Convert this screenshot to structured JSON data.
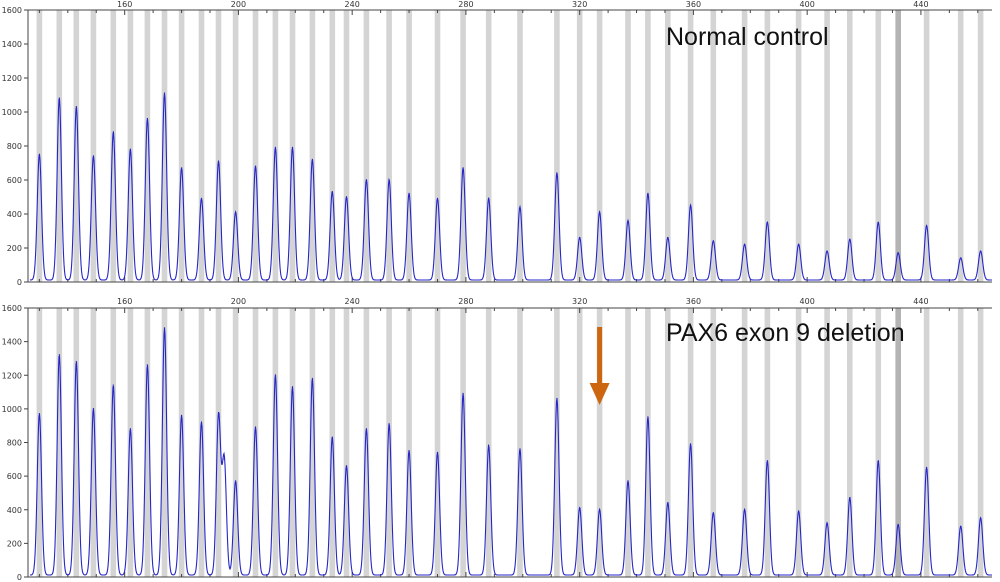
{
  "figure": {
    "colors": {
      "trace": "#2626c8",
      "bin": "#d4d4d4",
      "bin_dark": "#b4b4b4",
      "axis": "#444444",
      "arrow": "#cc6611"
    }
  },
  "chart_data": [
    {
      "type": "line",
      "title": "Normal control",
      "xlabel": "",
      "ylabel": "",
      "x_ticks": [
        "160",
        "200",
        "240",
        "280",
        "320",
        "360",
        "400",
        "440"
      ],
      "y_ticks": [
        "0",
        "200",
        "400",
        "600",
        "800",
        "1000",
        "1200",
        "1400",
        "1600"
      ],
      "xlim": [
        126,
        465
      ],
      "ylim": [
        0,
        1600
      ],
      "grid": false,
      "series": [
        {
          "peaks": [
            {
              "x": 130,
              "y": 740
            },
            {
              "x": 137,
              "y": 1070
            },
            {
              "x": 143,
              "y": 1020
            },
            {
              "x": 149,
              "y": 730
            },
            {
              "x": 156,
              "y": 870
            },
            {
              "x": 162,
              "y": 770
            },
            {
              "x": 168,
              "y": 950
            },
            {
              "x": 174,
              "y": 1100
            },
            {
              "x": 180,
              "y": 660
            },
            {
              "x": 187,
              "y": 480
            },
            {
              "x": 193,
              "y": 700
            },
            {
              "x": 199,
              "y": 400
            },
            {
              "x": 206,
              "y": 670
            },
            {
              "x": 213,
              "y": 780
            },
            {
              "x": 219,
              "y": 780
            },
            {
              "x": 226,
              "y": 710
            },
            {
              "x": 233,
              "y": 520
            },
            {
              "x": 238,
              "y": 490
            },
            {
              "x": 245,
              "y": 590
            },
            {
              "x": 253,
              "y": 590
            },
            {
              "x": 260,
              "y": 510
            },
            {
              "x": 270,
              "y": 480
            },
            {
              "x": 279,
              "y": 660
            },
            {
              "x": 288,
              "y": 480
            },
            {
              "x": 299,
              "y": 430
            },
            {
              "x": 312,
              "y": 630
            },
            {
              "x": 320,
              "y": 250
            },
            {
              "x": 327,
              "y": 400
            },
            {
              "x": 337,
              "y": 350
            },
            {
              "x": 344,
              "y": 510
            },
            {
              "x": 351,
              "y": 250
            },
            {
              "x": 359,
              "y": 440
            },
            {
              "x": 367,
              "y": 230
            },
            {
              "x": 378,
              "y": 210
            },
            {
              "x": 386,
              "y": 340
            },
            {
              "x": 397,
              "y": 210
            },
            {
              "x": 407,
              "y": 170
            },
            {
              "x": 415,
              "y": 240
            },
            {
              "x": 425,
              "y": 340
            },
            {
              "x": 432,
              "y": 160
            },
            {
              "x": 442,
              "y": 320
            },
            {
              "x": 454,
              "y": 130
            },
            {
              "x": 461,
              "y": 170
            }
          ]
        }
      ],
      "bins": [
        130,
        137,
        143,
        149,
        156,
        162,
        168,
        174,
        180,
        187,
        193,
        199,
        206,
        213,
        219,
        226,
        233,
        238,
        245,
        253,
        260,
        270,
        279,
        288,
        299,
        312,
        320,
        327,
        337,
        344,
        351,
        359,
        367,
        378,
        386,
        397,
        407,
        415,
        425,
        432,
        442,
        454,
        461
      ],
      "annotation": ""
    },
    {
      "type": "line",
      "title": "PAX6 exon 9 deletion",
      "xlabel": "",
      "ylabel": "",
      "x_ticks": [
        "160",
        "200",
        "240",
        "280",
        "320",
        "360",
        "400",
        "440"
      ],
      "y_ticks": [
        "0",
        "200",
        "400",
        "600",
        "800",
        "1000",
        "1200",
        "1400",
        "1600"
      ],
      "xlim": [
        126,
        465
      ],
      "ylim": [
        0,
        1600
      ],
      "grid": false,
      "series": [
        {
          "peaks": [
            {
              "x": 130,
              "y": 960
            },
            {
              "x": 137,
              "y": 1310
            },
            {
              "x": 143,
              "y": 1270
            },
            {
              "x": 149,
              "y": 990
            },
            {
              "x": 156,
              "y": 1130
            },
            {
              "x": 162,
              "y": 870
            },
            {
              "x": 168,
              "y": 1250
            },
            {
              "x": 174,
              "y": 1470
            },
            {
              "x": 180,
              "y": 950
            },
            {
              "x": 187,
              "y": 910
            },
            {
              "x": 193,
              "y": 950
            },
            {
              "x": 195,
              "y": 690
            },
            {
              "x": 199,
              "y": 560
            },
            {
              "x": 206,
              "y": 880
            },
            {
              "x": 213,
              "y": 1190
            },
            {
              "x": 219,
              "y": 1120
            },
            {
              "x": 226,
              "y": 1170
            },
            {
              "x": 233,
              "y": 820
            },
            {
              "x": 238,
              "y": 650
            },
            {
              "x": 245,
              "y": 870
            },
            {
              "x": 253,
              "y": 900
            },
            {
              "x": 260,
              "y": 740
            },
            {
              "x": 270,
              "y": 730
            },
            {
              "x": 279,
              "y": 1080
            },
            {
              "x": 288,
              "y": 770
            },
            {
              "x": 299,
              "y": 750
            },
            {
              "x": 312,
              "y": 1050
            },
            {
              "x": 320,
              "y": 400
            },
            {
              "x": 327,
              "y": 390
            },
            {
              "x": 337,
              "y": 560
            },
            {
              "x": 344,
              "y": 940
            },
            {
              "x": 351,
              "y": 430
            },
            {
              "x": 359,
              "y": 780
            },
            {
              "x": 367,
              "y": 370
            },
            {
              "x": 378,
              "y": 390
            },
            {
              "x": 386,
              "y": 680
            },
            {
              "x": 397,
              "y": 380
            },
            {
              "x": 407,
              "y": 310
            },
            {
              "x": 415,
              "y": 460
            },
            {
              "x": 425,
              "y": 680
            },
            {
              "x": 432,
              "y": 300
            },
            {
              "x": 442,
              "y": 640
            },
            {
              "x": 454,
              "y": 290
            },
            {
              "x": 461,
              "y": 340
            }
          ]
        }
      ],
      "bins": [
        130,
        137,
        143,
        149,
        156,
        162,
        168,
        174,
        180,
        187,
        193,
        199,
        206,
        213,
        219,
        226,
        233,
        238,
        245,
        253,
        260,
        270,
        279,
        288,
        299,
        312,
        320,
        327,
        337,
        344,
        351,
        359,
        367,
        378,
        386,
        397,
        407,
        415,
        425,
        432,
        442,
        454,
        461
      ],
      "annotation": "arrow-down-icon",
      "annotation_x": 327
    }
  ]
}
